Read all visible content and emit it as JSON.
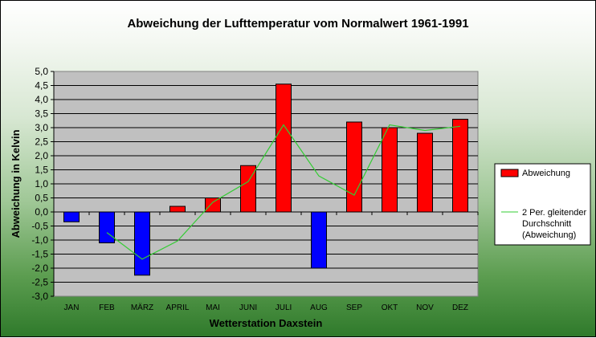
{
  "chart_data": {
    "type": "bar",
    "title": "Abweichung der Lufttemperatur vom Normalwert 1961-1991",
    "xlabel": "Wetterstation Daxstein",
    "ylabel": "Abweichung in Kelvin",
    "ylim": [
      -3.0,
      5.0
    ],
    "ytick_step": 0.5,
    "ytick_labels": [
      "-3,0",
      "-2,5",
      "-2,0",
      "-1,5",
      "-1,0",
      "-0,5",
      "0,0",
      "0,5",
      "1,0",
      "1,5",
      "2,0",
      "2,5",
      "3,0",
      "3,5",
      "4,0",
      "4,5",
      "5,0"
    ],
    "categories": [
      "JAN",
      "FEB",
      "MÄRZ",
      "APRIL",
      "MAI",
      "JUNI",
      "JULI",
      "AUG",
      "SEP",
      "OKT",
      "NOV",
      "DEZ"
    ],
    "grid": true,
    "legend_placement": "right",
    "series": [
      {
        "name": "Abweichung",
        "kind": "bar",
        "values": [
          -0.35,
          -1.1,
          -2.25,
          0.2,
          0.5,
          1.65,
          4.55,
          -2.0,
          3.2,
          3.0,
          2.8,
          3.3
        ],
        "positive_color": "#ff0000",
        "negative_color": "#0000ff"
      },
      {
        "name": "2 Per. gleitender Durchschnitt (Abweichung)",
        "kind": "line",
        "values": [
          null,
          -0.73,
          -1.68,
          -1.03,
          0.35,
          1.08,
          3.1,
          1.28,
          0.6,
          3.1,
          2.9,
          3.05
        ],
        "color": "#33cc33"
      }
    ],
    "legend": [
      {
        "lines": [
          "Abweichung"
        ]
      },
      {
        "lines": [
          "2 Per. gleitender",
          "Durchschnitt",
          "(Abweichung)"
        ]
      }
    ],
    "plot_background": "#c0c0c0"
  }
}
